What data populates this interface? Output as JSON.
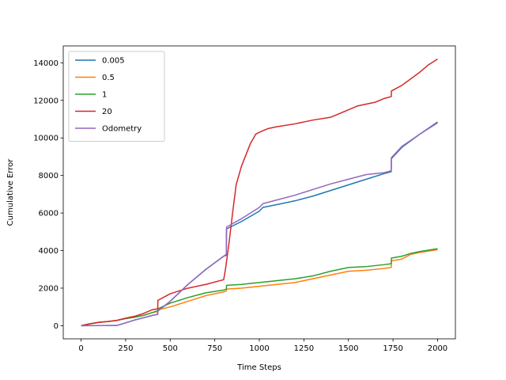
{
  "chart_data": {
    "type": "line",
    "title": "",
    "xlabel": "Time Steps",
    "ylabel": "Cumulative Error",
    "xlim": [
      -100,
      2100
    ],
    "ylim": [
      -700,
      14900
    ],
    "xticks": [
      0,
      250,
      500,
      750,
      1000,
      1250,
      1500,
      1750,
      2000
    ],
    "yticks": [
      0,
      2000,
      4000,
      6000,
      8000,
      10000,
      12000,
      14000
    ],
    "xtick_labels": [
      "0",
      "250",
      "500",
      "750",
      "1000",
      "1250",
      "1500",
      "1750",
      "2000"
    ],
    "ytick_labels": [
      "0",
      "2000",
      "4000",
      "6000",
      "8000",
      "10000",
      "12000",
      "14000"
    ],
    "grid": false,
    "legend": "top-left",
    "series": [
      {
        "name": "0.005",
        "color": "#1f77b4",
        "x": [
          0,
          200,
          250,
          300,
          350,
          400,
          430,
          431,
          500,
          600,
          700,
          800,
          815,
          816,
          900,
          1000,
          1020,
          1100,
          1200,
          1300,
          1400,
          1500,
          1600,
          1700,
          1740,
          1741,
          1800,
          1900,
          2000
        ],
        "y": [
          0,
          10,
          150,
          300,
          420,
          550,
          600,
          780,
          1300,
          2200,
          3000,
          3700,
          3750,
          5150,
          5550,
          6100,
          6300,
          6450,
          6650,
          6900,
          7200,
          7500,
          7800,
          8100,
          8200,
          8900,
          9500,
          10200,
          10850
        ]
      },
      {
        "name": "0.5",
        "color": "#ff7f0e",
        "x": [
          0,
          50,
          100,
          150,
          200,
          250,
          300,
          350,
          400,
          430,
          431,
          500,
          600,
          700,
          800,
          815,
          816,
          900,
          1000,
          1100,
          1200,
          1300,
          1400,
          1500,
          1600,
          1700,
          1740,
          1741,
          1800,
          1850,
          1900,
          2000
        ],
        "y": [
          0,
          100,
          180,
          220,
          280,
          380,
          450,
          550,
          700,
          750,
          850,
          1000,
          1300,
          1600,
          1800,
          1850,
          1950,
          2000,
          2100,
          2200,
          2300,
          2500,
          2700,
          2900,
          2950,
          3050,
          3100,
          3450,
          3550,
          3800,
          3900,
          4050
        ]
      },
      {
        "name": "1",
        "color": "#2ca02c",
        "x": [
          0,
          50,
          100,
          150,
          200,
          250,
          300,
          350,
          400,
          430,
          431,
          500,
          600,
          700,
          800,
          815,
          816,
          900,
          1000,
          1100,
          1200,
          1300,
          1400,
          1500,
          1600,
          1700,
          1740,
          1741,
          1800,
          1850,
          1900,
          2000
        ],
        "y": [
          0,
          100,
          180,
          220,
          280,
          380,
          450,
          550,
          700,
          800,
          900,
          1200,
          1500,
          1750,
          1900,
          1950,
          2150,
          2200,
          2300,
          2400,
          2500,
          2650,
          2900,
          3100,
          3150,
          3250,
          3300,
          3600,
          3700,
          3850,
          3950,
          4100
        ]
      },
      {
        "name": "20",
        "color": "#d62728",
        "x": [
          0,
          50,
          100,
          150,
          200,
          250,
          300,
          350,
          400,
          430,
          431,
          500,
          600,
          700,
          800,
          810,
          830,
          850,
          870,
          900,
          950,
          980,
          1000,
          1050,
          1100,
          1200,
          1250,
          1300,
          1400,
          1450,
          1500,
          1550,
          1600,
          1650,
          1700,
          1740,
          1741,
          1800,
          1900,
          1950,
          2000
        ],
        "y": [
          0,
          100,
          180,
          220,
          280,
          400,
          500,
          650,
          850,
          900,
          1350,
          1700,
          2000,
          2200,
          2450,
          3000,
          4400,
          6000,
          7500,
          8500,
          9700,
          10200,
          10300,
          10500,
          10600,
          10750,
          10850,
          10950,
          11100,
          11300,
          11500,
          11700,
          11800,
          11900,
          12100,
          12200,
          12500,
          12800,
          13500,
          13900,
          14200
        ]
      },
      {
        "name": "Odometry",
        "color": "#9467bd",
        "x": [
          0,
          200,
          250,
          300,
          350,
          400,
          430,
          431,
          500,
          600,
          700,
          800,
          815,
          816,
          900,
          1000,
          1020,
          1100,
          1200,
          1300,
          1400,
          1500,
          1600,
          1700,
          1740,
          1741,
          1800,
          1900,
          2000
        ],
        "y": [
          0,
          10,
          150,
          300,
          420,
          550,
          600,
          780,
          1300,
          2200,
          3000,
          3700,
          3800,
          5250,
          5700,
          6300,
          6500,
          6700,
          6950,
          7250,
          7550,
          7800,
          8050,
          8150,
          8250,
          8950,
          9550,
          10200,
          10800
        ]
      }
    ]
  }
}
